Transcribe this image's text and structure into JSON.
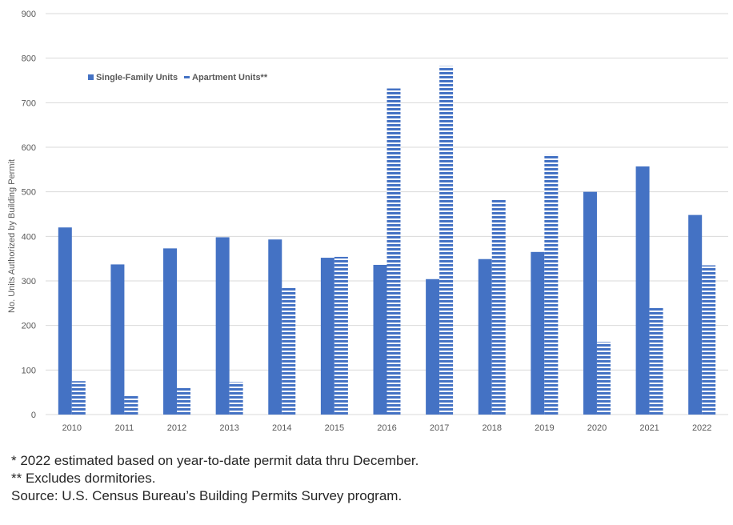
{
  "chart_data": {
    "type": "bar",
    "title": "",
    "xlabel": "",
    "ylabel": "No. Units Authorized by Building Permit",
    "ylim": [
      0,
      900
    ],
    "yticks": [
      0,
      100,
      200,
      300,
      400,
      500,
      600,
      700,
      800,
      900
    ],
    "categories": [
      "2010",
      "2011",
      "2012",
      "2013",
      "2014",
      "2015",
      "2016",
      "2017",
      "2018",
      "2019",
      "2020",
      "2021",
      "2022"
    ],
    "series": [
      {
        "name": "Single-Family Units",
        "values": [
          420,
          337,
          373,
          398,
          393,
          352,
          336,
          304,
          349,
          365,
          500,
          557,
          448
        ],
        "color": "#4472C4",
        "pattern": "solid"
      },
      {
        "name": "Apartment Units**",
        "values": [
          75,
          44,
          62,
          73,
          284,
          354,
          732,
          782,
          484,
          584,
          163,
          242,
          335
        ],
        "color": "#4472C4",
        "pattern": "horizontal-stripes"
      }
    ],
    "grid": true,
    "legend_position": "top-left"
  },
  "footnotes": [
    "* 2022 estimated based on year-to-date permit data thru December.",
    "** Excludes dormitories.",
    "Source: U.S. Census Bureau’s Building Permits Survey program."
  ]
}
